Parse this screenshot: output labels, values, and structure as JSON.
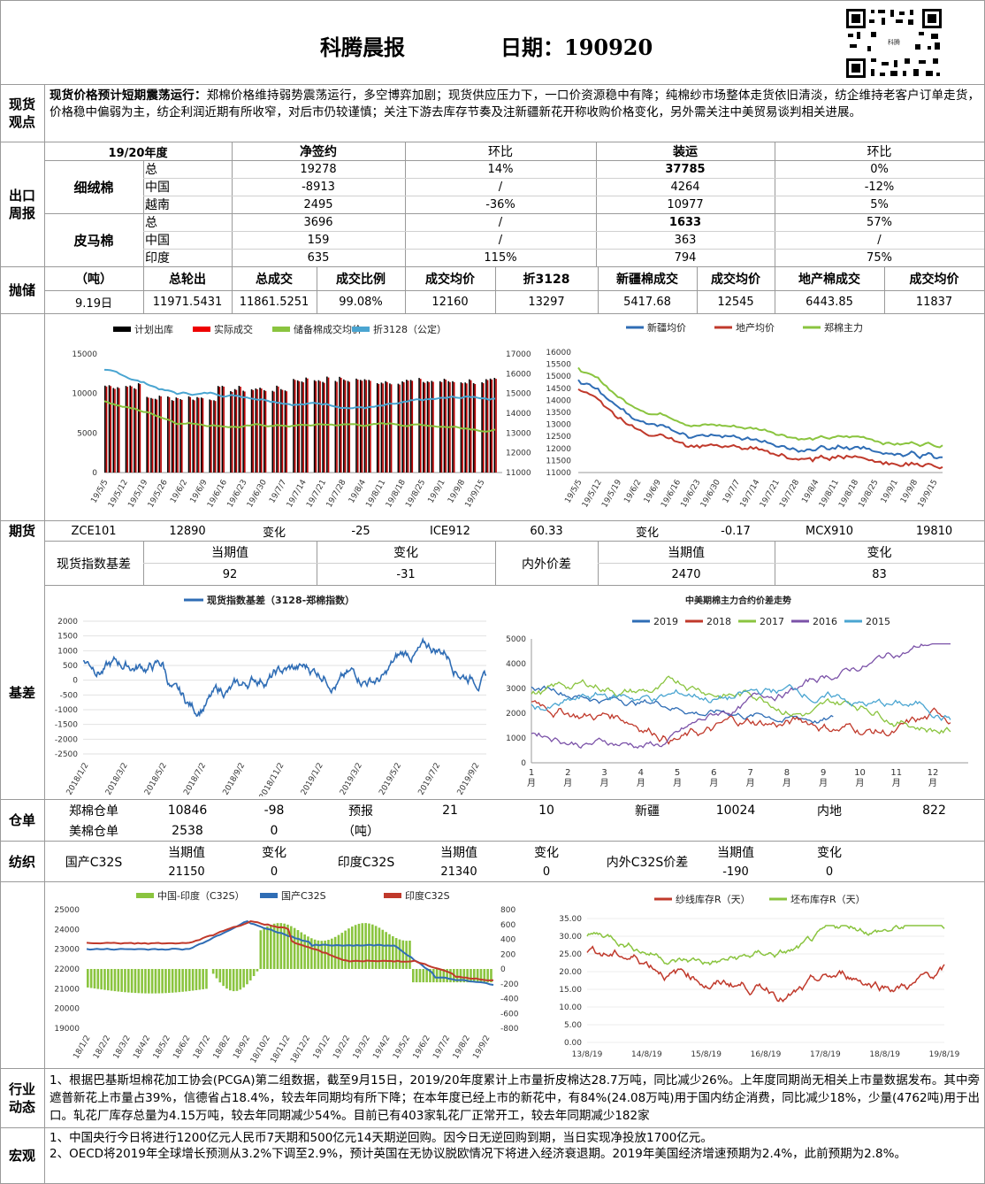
{
  "header": {
    "title": "科腾晨报",
    "date_label": "日期：190920"
  },
  "view": {
    "section": "现货观点",
    "lead": "现货价格预计短期震荡运行：",
    "body": "郑棉价格维持弱势震荡运行，多空博弈加剧；现货供应压力下，一口价资源稳中有降；纯棉纱市场整体走货依旧清淡，纺企维持老客户订单走货，价格稳中偏弱为主，纺企利润近期有所收窄，对后市仍较谨慎；关注下游去库存节奏及注新疆新花开称收购价格变化，另外需关注中美贸易谈判相关进展。"
  },
  "export": {
    "section": "出口周报",
    "year": "19/20年度",
    "h_net": "净签约",
    "h_chg1": "环比",
    "h_ship": "装运",
    "h_chg2": "环比",
    "groups": [
      {
        "name": "细绒棉",
        "rows": [
          [
            "总",
            "19278",
            "14%",
            "37785",
            "0%"
          ],
          [
            "中国",
            "-8913",
            "/",
            "4264",
            "-12%"
          ],
          [
            "越南",
            "2495",
            "-36%",
            "10977",
            "5%"
          ]
        ]
      },
      {
        "name": "皮马棉",
        "rows": [
          [
            "总",
            "3696",
            "/",
            "1633",
            "57%"
          ],
          [
            "中国",
            "159",
            "/",
            "363",
            "/"
          ],
          [
            "印度",
            "635",
            "115%",
            "794",
            "75%"
          ]
        ]
      }
    ]
  },
  "auction": {
    "section": "抛储",
    "headers": [
      "（吨）",
      "总轮出",
      "总成交",
      "成交比例",
      "成交均价",
      "折3128",
      "新疆棉成交",
      "成交均价",
      "地产棉成交",
      "成交均价"
    ],
    "values": [
      "9.19日",
      "11971.5431",
      "11861.5251",
      "99.08%",
      "12160",
      "13297",
      "5417.68",
      "12545",
      "6443.85",
      "11837"
    ]
  },
  "charts": {
    "left_legend": [
      "计划出库",
      "实际成交",
      "储备棉成交均价",
      "折3128（公定）"
    ],
    "left_y": [
      "15000",
      "10000",
      "5000",
      "0"
    ],
    "left_y2": [
      "17000",
      "16000",
      "15000",
      "14000",
      "13000",
      "12000",
      "11000"
    ],
    "left_x": [
      "19/5/5",
      "19/5/12",
      "19/5/19",
      "19/5/26",
      "19/6/2",
      "19/6/9",
      "19/6/16",
      "19/6/23",
      "19/6/30",
      "19/7/7",
      "19/7/14",
      "19/7/21",
      "19/7/28",
      "19/8/4",
      "19/8/11",
      "19/8/18",
      "19/8/25",
      "19/9/1",
      "19/9/8",
      "19/9/15"
    ],
    "right_legend": [
      "新疆均价",
      "地产均价",
      "郑棉主力"
    ],
    "right_y": [
      "16000",
      "15500",
      "15000",
      "14500",
      "14000",
      "13500",
      "13000",
      "12500",
      "12000",
      "11500",
      "11000"
    ],
    "right_x": [
      "19/5/5",
      "19/5/12",
      "19/5/19",
      "19/6/2",
      "19/6/9",
      "19/6/16",
      "19/6/23",
      "19/6/30",
      "19/7/7",
      "19/7/14",
      "19/7/21",
      "19/7/28",
      "19/8/4",
      "19/8/11",
      "19/8/18",
      "19/8/25",
      "19/9/1",
      "19/9/8",
      "19/9/15"
    ],
    "basis_title": "现货指数基差（3128-郑棉指数）",
    "basis_y": [
      "2000",
      "1500",
      "1000",
      "500",
      "0",
      "-500",
      "-1000",
      "-1500",
      "-2000",
      "-2500"
    ],
    "basis_x": [
      "2018/1/2",
      "2018/3/2",
      "2018/5/2",
      "2018/7/2",
      "2018/9/2",
      "2018/11/2",
      "2019/1/2",
      "2019/3/2",
      "2019/5/2",
      "2019/7/2",
      "2019/9/2"
    ],
    "spread_title": "中美期棉主力合约价差走势",
    "spread_legend": [
      "2019",
      "2018",
      "2017",
      "2016",
      "2015"
    ],
    "spread_y": [
      "5000",
      "4000",
      "3000",
      "2000",
      "1000",
      "0"
    ],
    "spread_x": [
      "1\n月",
      "2\n月",
      "3\n月",
      "4\n月",
      "5\n月",
      "6\n月",
      "7\n月",
      "8\n月",
      "9\n月",
      "10\n月",
      "11\n月",
      "12\n月"
    ],
    "yarn_legend": [
      "中国-印度（C32S）",
      "国产C32S",
      "印度C32S"
    ],
    "yarn_y": [
      "25000",
      "24000",
      "23000",
      "22000",
      "21000",
      "20000",
      "19000"
    ],
    "yarn_y2": [
      "800",
      "600",
      "400",
      "200",
      "0",
      "-200",
      "-400",
      "-600",
      "-800"
    ],
    "yarn_x": [
      "18/1/2",
      "18/2/2",
      "18/3/2",
      "18/4/2",
      "18/5/2",
      "18/6/2",
      "18/7/2",
      "18/8/2",
      "18/9/2",
      "18/10/2",
      "18/11/2",
      "18/12/2",
      "19/1/2",
      "19/2/2",
      "19/3/2",
      "19/4/2",
      "19/5/2",
      "19/6/2",
      "19/7/2",
      "19/8/2",
      "19/9/2"
    ],
    "stock_legend": [
      "纱线库存R（天）",
      "坯布库存R（天）"
    ],
    "stock_y": [
      "35.00",
      "30.00",
      "25.00",
      "20.00",
      "15.00",
      "10.00",
      "5.00",
      "0.00"
    ],
    "stock_x": [
      "13/8/19",
      "14/8/19",
      "15/8/19",
      "16/8/19",
      "17/8/19",
      "18/8/19",
      "19/8/19"
    ]
  },
  "futures": {
    "section": "期货",
    "row": [
      "ZCE101",
      "12890",
      "变化",
      "-25",
      "ICE912",
      "60.33",
      "变化",
      "-0.17",
      "MCX910",
      "19810"
    ],
    "basis_label": "现货指数基差",
    "h1": "当期值",
    "h2": "变化",
    "basis_val": "92",
    "basis_chg": "-31",
    "spread_label": "内外价差",
    "spread_val": "2470",
    "spread_chg": "83"
  },
  "basis_section": "基差",
  "warehouse": {
    "section": "仓单",
    "r1": [
      "郑棉仓单",
      "10846",
      "-98",
      "预报",
      "21",
      "10",
      "新疆",
      "10024",
      "内地",
      "822"
    ],
    "r2": [
      "美棉仓单",
      "2538",
      "0",
      "（吨）"
    ]
  },
  "textile": {
    "section": "纺织",
    "labels": [
      "国产C32S",
      "印度C32S",
      "内外C32S价差"
    ],
    "h1": "当期值",
    "h2": "变化",
    "vals": [
      "21150",
      "0",
      "21340",
      "0",
      "-190",
      "0"
    ]
  },
  "industry": {
    "section": "行业动态",
    "body": "1、根据巴基斯坦棉花加工协会(PCGA)第二组数据，截至9月15日，2019/20年度累计上市量折皮棉达28.7万吨，同比减少26%。上年度同期尚无相关上市量数据发布。其中旁遮普新花上市量占39%，信德省占18.4%，较去年同期均有所下降；在本年度已经上市的新花中，有84%(24.08万吨)用于国内纺企消费，同比减少18%，少量(4762吨)用于出口。轧花厂库存总量为4.15万吨，较去年同期减少54%。目前已有403家轧花厂正常开工，较去年同期减少182家"
  },
  "macro": {
    "section": "宏观",
    "body": "1、中国央行今日将进行1200亿元人民币7天期和500亿元14天期逆回购。因今日无逆回购到期，当日实现净投放1700亿元。\n2、OECD将2019年全球增长预测从3.2%下调至2.9%，预计英国在无协议脱欧情况下将进入经济衰退期。2019年美国经济增速预期为2.4%，此前预期为2.8%。"
  }
}
